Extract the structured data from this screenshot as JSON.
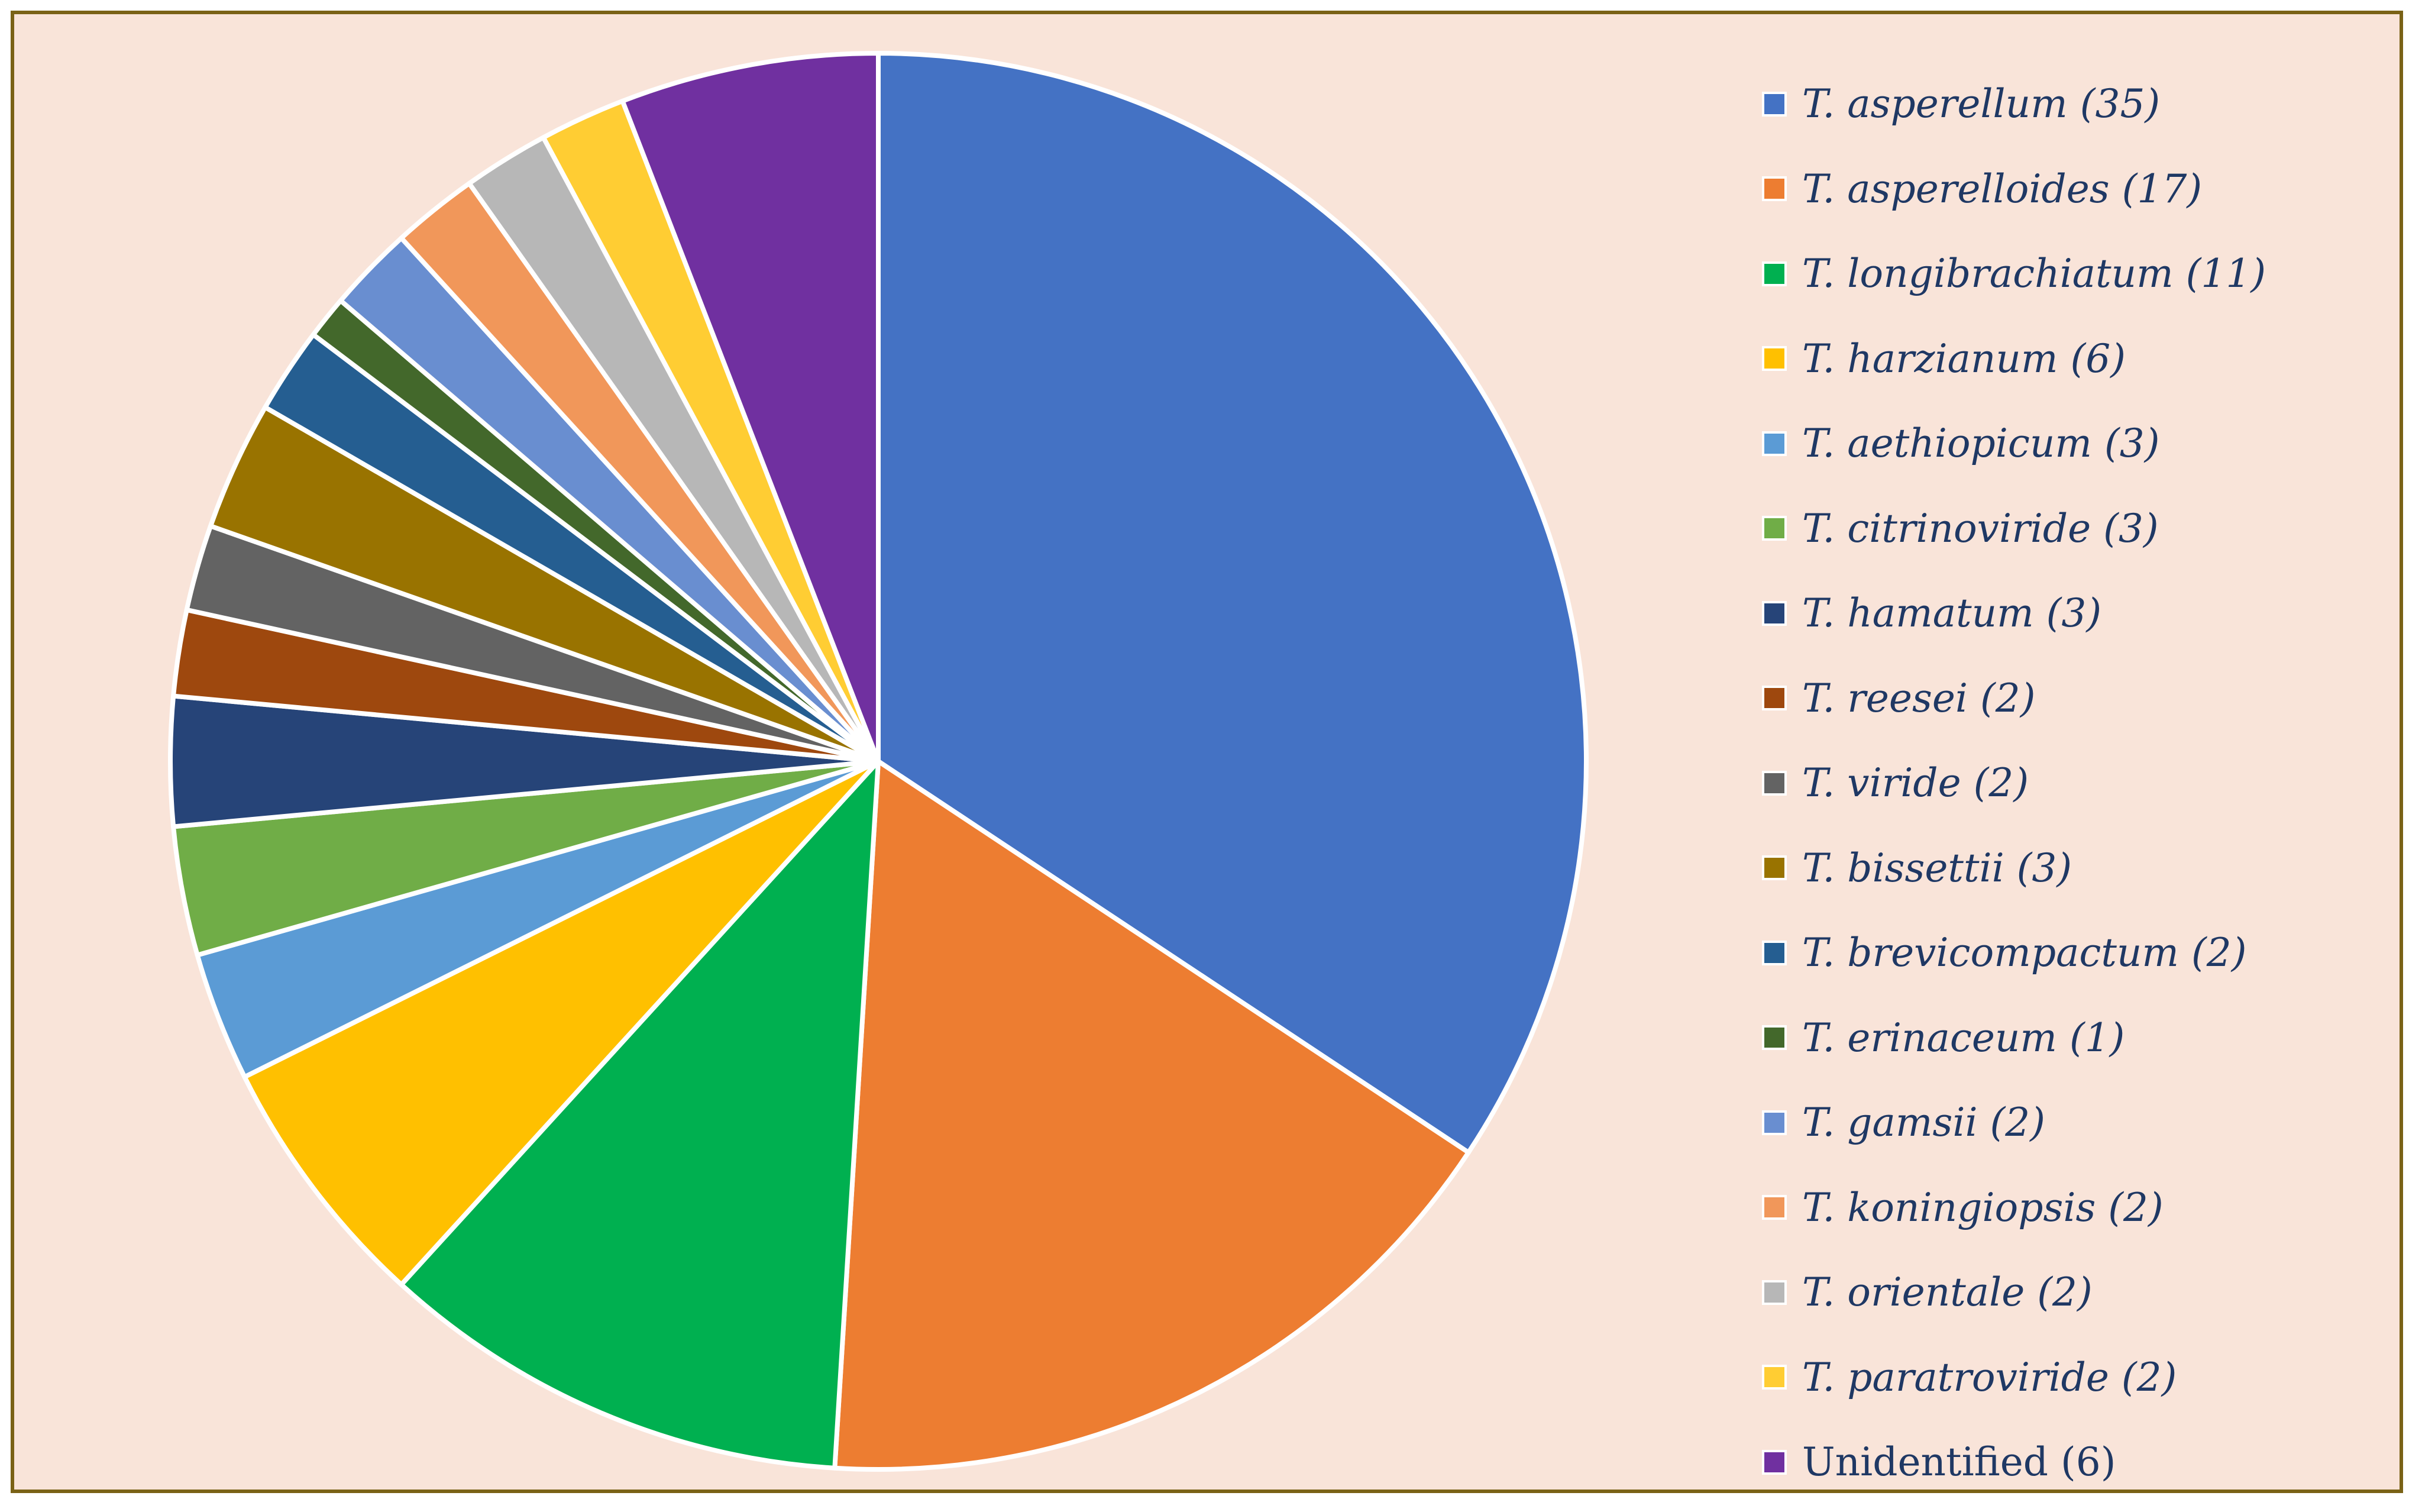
{
  "chart_data": {
    "type": "pie",
    "start_angle_deg": 0,
    "direction": "clockwise",
    "legend_position": "right",
    "slices": [
      {
        "label": "T. asperellum (35)",
        "value": 35,
        "color": "#4472c4",
        "italic": true
      },
      {
        "label": "T. asperelloides (17)",
        "value": 17,
        "color": "#ed7d31",
        "italic": true
      },
      {
        "label": "T. longibrachiatum (11)",
        "value": 11,
        "color": "#00b050",
        "italic": true
      },
      {
        "label": "T. harzianum (6)",
        "value": 6,
        "color": "#ffc000",
        "italic": true
      },
      {
        "label": "T. aethiopicum (3)",
        "value": 3,
        "color": "#5b9bd5",
        "italic": true
      },
      {
        "label": "T. citrinoviride (3)",
        "value": 3,
        "color": "#70ad47",
        "italic": true
      },
      {
        "label": "T. hamatum (3)",
        "value": 3,
        "color": "#264478",
        "italic": true
      },
      {
        "label": "T. reesei (2)",
        "value": 2,
        "color": "#9e480e",
        "italic": true
      },
      {
        "label": "T. viride (2)",
        "value": 2,
        "color": "#636363",
        "italic": true
      },
      {
        "label": "T. bissettii (3)",
        "value": 3,
        "color": "#997300",
        "italic": true
      },
      {
        "label": "T. brevicompactum (2)",
        "value": 2,
        "color": "#255e91",
        "italic": true
      },
      {
        "label": "T. erinaceum (1)",
        "value": 1,
        "color": "#43682b",
        "italic": true
      },
      {
        "label": "T. gamsii (2)",
        "value": 2,
        "color": "#698ed0",
        "italic": true
      },
      {
        "label": "T. koningiopsis (2)",
        "value": 2,
        "color": "#f1975a",
        "italic": true
      },
      {
        "label": "T. orientale (2)",
        "value": 2,
        "color": "#b7b7b7",
        "italic": true
      },
      {
        "label": "T. paratroviride (2)",
        "value": 2,
        "color": "#ffcd33",
        "italic": true
      },
      {
        "label": "Unidentified (6)",
        "value": 6,
        "color": "#7030a0",
        "italic": false
      }
    ]
  }
}
